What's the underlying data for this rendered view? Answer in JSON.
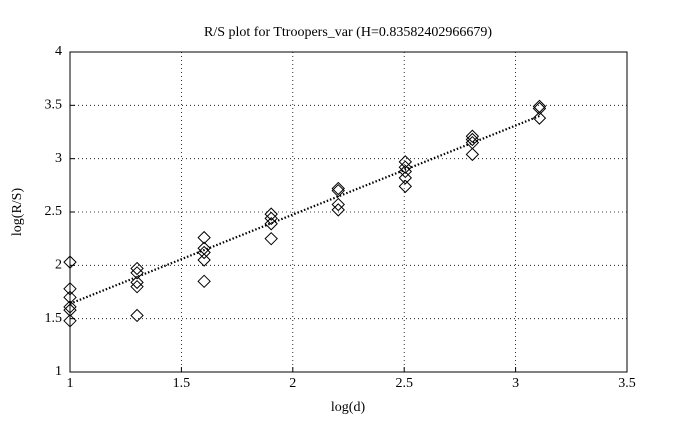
{
  "chart_data": {
    "type": "scatter",
    "title": "R/S plot for Ttroopers_var (H=0.83582402966679)",
    "x_label": "log(d)",
    "y_label": "log(R/S)",
    "x": [
      1,
      1,
      1,
      1,
      1,
      1,
      1.301,
      1.301,
      1.301,
      1.301,
      1.301,
      1.602,
      1.602,
      1.602,
      1.602,
      1.602,
      1.903,
      1.903,
      1.903,
      1.903,
      2.204,
      2.204,
      2.204,
      2.204,
      2.505,
      2.505,
      2.505,
      2.505,
      2.505,
      2.806,
      2.806,
      2.806,
      2.806,
      3.107,
      3.107,
      3.107
    ],
    "values": [
      2.03,
      1.78,
      1.7,
      1.61,
      1.58,
      1.48,
      1.97,
      1.93,
      1.84,
      1.8,
      1.53,
      2.26,
      2.16,
      2.12,
      2.05,
      1.85,
      2.48,
      2.44,
      2.39,
      2.25,
      2.72,
      2.7,
      2.57,
      2.52,
      2.97,
      2.92,
      2.88,
      2.82,
      2.74,
      3.21,
      3.18,
      3.15,
      3.04,
      3.49,
      3.47,
      3.38
    ],
    "color": "#000000",
    "fit": {
      "x": [
        1,
        3.107
      ],
      "values": [
        1.64,
        3.4
      ]
    },
    "xlim": [
      1,
      3.5
    ],
    "xticks": [
      1,
      1.5,
      2,
      2.5,
      3,
      3.5
    ],
    "ylim": [
      1,
      4
    ],
    "yticks": [
      1,
      1.5,
      2,
      2.5,
      3,
      3.5,
      4
    ],
    "grid": true
  }
}
